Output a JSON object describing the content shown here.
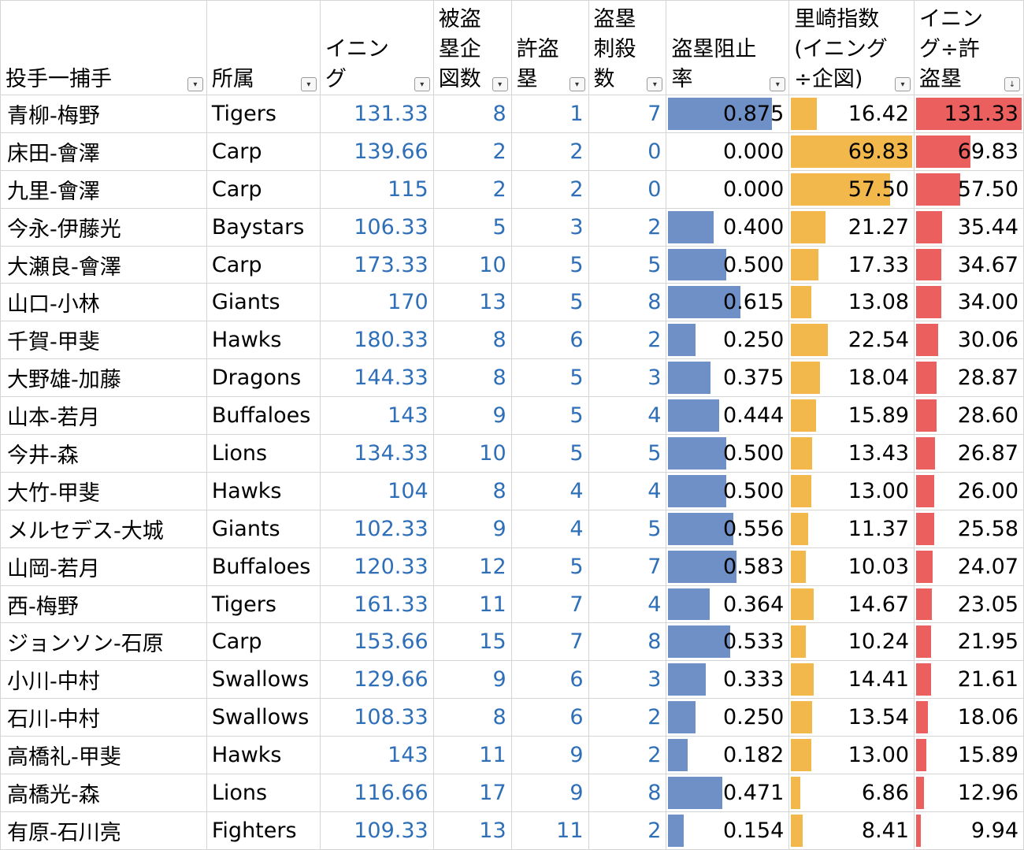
{
  "headers": [
    {
      "key": "pair",
      "label": "投手一捕手"
    },
    {
      "key": "team",
      "label": "所属"
    },
    {
      "key": "innings",
      "label": "イニング"
    },
    {
      "key": "attempts",
      "label": "被盗塁企図数"
    },
    {
      "key": "allowed",
      "label": "許盗塁"
    },
    {
      "key": "caught",
      "label": "盗塁刺殺数"
    },
    {
      "key": "rate",
      "label": "盗塁阻止率"
    },
    {
      "key": "satozaki",
      "label": "里崎指数(イニング÷企図)"
    },
    {
      "key": "ipsb",
      "label": "イニング÷許盗塁"
    }
  ],
  "filter_icons": [
    "filter-dropdown-icon",
    "sort-descending-icon"
  ],
  "colors": {
    "blue_bar": "#6f8fc7",
    "orange_bar": "#f2b84b",
    "red_bar": "#ec5f5f",
    "number_text": "#2f6fb8"
  },
  "scales": {
    "rate_max": 1.0,
    "satozaki_max": 69.83,
    "ipsb_max": 131.33
  },
  "rows": [
    {
      "pair": "青柳-梅野",
      "team": "Tigers",
      "innings": "131.33",
      "attempts": "8",
      "allowed": "1",
      "caught": "7",
      "rate": "0.875",
      "satozaki": "16.42",
      "ipsb": "131.33"
    },
    {
      "pair": "床田-會澤",
      "team": "Carp",
      "innings": "139.66",
      "attempts": "2",
      "allowed": "2",
      "caught": "0",
      "rate": "0.000",
      "satozaki": "69.83",
      "ipsb": "69.83"
    },
    {
      "pair": "九里-會澤",
      "team": "Carp",
      "innings": "115",
      "attempts": "2",
      "allowed": "2",
      "caught": "0",
      "rate": "0.000",
      "satozaki": "57.50",
      "ipsb": "57.50"
    },
    {
      "pair": "今永-伊藤光",
      "team": "Baystars",
      "innings": "106.33",
      "attempts": "5",
      "allowed": "3",
      "caught": "2",
      "rate": "0.400",
      "satozaki": "21.27",
      "ipsb": "35.44"
    },
    {
      "pair": "大瀬良-會澤",
      "team": "Carp",
      "innings": "173.33",
      "attempts": "10",
      "allowed": "5",
      "caught": "5",
      "rate": "0.500",
      "satozaki": "17.33",
      "ipsb": "34.67"
    },
    {
      "pair": "山口-小林",
      "team": "Giants",
      "innings": "170",
      "attempts": "13",
      "allowed": "5",
      "caught": "8",
      "rate": "0.615",
      "satozaki": "13.08",
      "ipsb": "34.00"
    },
    {
      "pair": "千賀-甲斐",
      "team": "Hawks",
      "innings": "180.33",
      "attempts": "8",
      "allowed": "6",
      "caught": "2",
      "rate": "0.250",
      "satozaki": "22.54",
      "ipsb": "30.06"
    },
    {
      "pair": "大野雄-加藤",
      "team": "Dragons",
      "innings": "144.33",
      "attempts": "8",
      "allowed": "5",
      "caught": "3",
      "rate": "0.375",
      "satozaki": "18.04",
      "ipsb": "28.87"
    },
    {
      "pair": "山本-若月",
      "team": "Buffaloes",
      "innings": "143",
      "attempts": "9",
      "allowed": "5",
      "caught": "4",
      "rate": "0.444",
      "satozaki": "15.89",
      "ipsb": "28.60"
    },
    {
      "pair": "今井-森",
      "team": "Lions",
      "innings": "134.33",
      "attempts": "10",
      "allowed": "5",
      "caught": "5",
      "rate": "0.500",
      "satozaki": "13.43",
      "ipsb": "26.87"
    },
    {
      "pair": "大竹-甲斐",
      "team": "Hawks",
      "innings": "104",
      "attempts": "8",
      "allowed": "4",
      "caught": "4",
      "rate": "0.500",
      "satozaki": "13.00",
      "ipsb": "26.00"
    },
    {
      "pair": "メルセデス-大城",
      "team": "Giants",
      "innings": "102.33",
      "attempts": "9",
      "allowed": "4",
      "caught": "5",
      "rate": "0.556",
      "satozaki": "11.37",
      "ipsb": "25.58"
    },
    {
      "pair": "山岡-若月",
      "team": "Buffaloes",
      "innings": "120.33",
      "attempts": "12",
      "allowed": "5",
      "caught": "7",
      "rate": "0.583",
      "satozaki": "10.03",
      "ipsb": "24.07"
    },
    {
      "pair": "西-梅野",
      "team": "Tigers",
      "innings": "161.33",
      "attempts": "11",
      "allowed": "7",
      "caught": "4",
      "rate": "0.364",
      "satozaki": "14.67",
      "ipsb": "23.05"
    },
    {
      "pair": "ジョンソン-石原",
      "team": "Carp",
      "innings": "153.66",
      "attempts": "15",
      "allowed": "7",
      "caught": "8",
      "rate": "0.533",
      "satozaki": "10.24",
      "ipsb": "21.95"
    },
    {
      "pair": "小川-中村",
      "team": "Swallows",
      "innings": "129.66",
      "attempts": "9",
      "allowed": "6",
      "caught": "3",
      "rate": "0.333",
      "satozaki": "14.41",
      "ipsb": "21.61"
    },
    {
      "pair": "石川-中村",
      "team": "Swallows",
      "innings": "108.33",
      "attempts": "8",
      "allowed": "6",
      "caught": "2",
      "rate": "0.250",
      "satozaki": "13.54",
      "ipsb": "18.06"
    },
    {
      "pair": "高橋礼-甲斐",
      "team": "Hawks",
      "innings": "143",
      "attempts": "11",
      "allowed": "9",
      "caught": "2",
      "rate": "0.182",
      "satozaki": "13.00",
      "ipsb": "15.89"
    },
    {
      "pair": "高橋光-森",
      "team": "Lions",
      "innings": "116.66",
      "attempts": "17",
      "allowed": "9",
      "caught": "8",
      "rate": "0.471",
      "satozaki": "6.86",
      "ipsb": "12.96"
    },
    {
      "pair": "有原-石川亮",
      "team": "Fighters",
      "innings": "109.33",
      "attempts": "13",
      "allowed": "11",
      "caught": "2",
      "rate": "0.154",
      "satozaki": "8.41",
      "ipsb": "9.94"
    }
  ]
}
